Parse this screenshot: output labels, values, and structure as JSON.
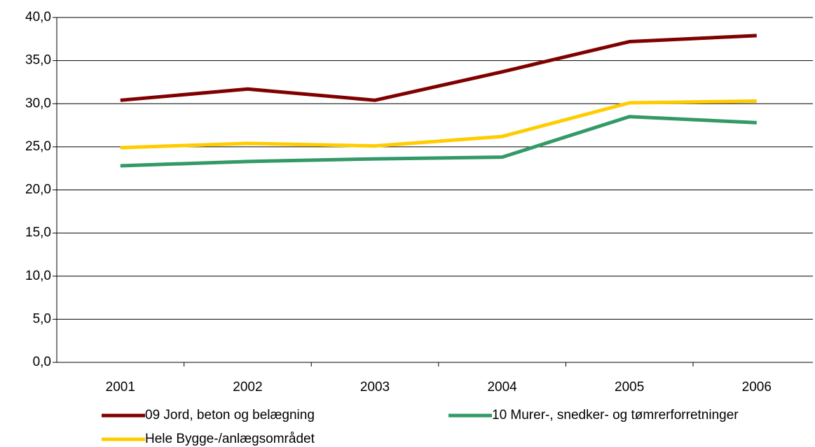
{
  "chart_data": {
    "type": "line",
    "categories": [
      "2001",
      "2002",
      "2003",
      "2004",
      "2005",
      "2006"
    ],
    "series": [
      {
        "name": "09 Jord, beton og belægning",
        "color": "#800000",
        "values": [
          30.4,
          31.7,
          30.4,
          33.7,
          37.2,
          37.9
        ]
      },
      {
        "name": "10 Murer-, snedker- og tømrerforretninger",
        "color": "#339966",
        "values": [
          22.8,
          23.3,
          23.6,
          23.8,
          28.5,
          27.8
        ]
      },
      {
        "name": "Hele Bygge-/anlægsområdet",
        "color": "#ffcc00",
        "values": [
          24.9,
          25.4,
          25.1,
          26.2,
          30.1,
          30.3
        ]
      }
    ],
    "ylim": [
      0,
      40
    ],
    "yticks": [
      {
        "value": 0,
        "label": "0,0"
      },
      {
        "value": 5,
        "label": "5,0"
      },
      {
        "value": 10,
        "label": "10,0"
      },
      {
        "value": 15,
        "label": "15,0"
      },
      {
        "value": 20,
        "label": "20,0"
      },
      {
        "value": 25,
        "label": "25,0"
      },
      {
        "value": 30,
        "label": "30,0"
      },
      {
        "value": 35,
        "label": "35,0"
      },
      {
        "value": 40,
        "label": "40,0"
      }
    ],
    "grid": true
  }
}
